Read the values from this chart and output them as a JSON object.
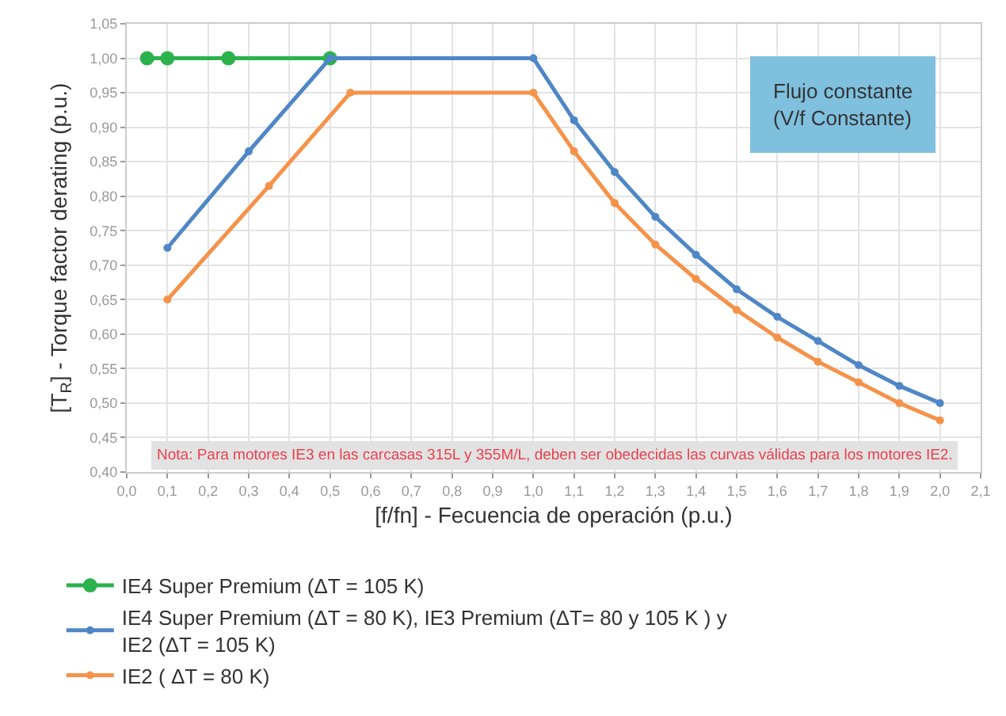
{
  "chart_data": {
    "type": "line",
    "xlabel": "[f/fn] - Fecuencia de operación (p.u.)",
    "ylabel": "[T$_{R}$] - Torque factor derating (p.u.)",
    "xlim": [
      0,
      2.1
    ],
    "xticks": [
      {
        "value": 0,
        "label": "0,0"
      },
      {
        "value": 0.1,
        "label": "0,1"
      },
      {
        "value": 0.2,
        "label": "0,2"
      },
      {
        "value": 0.3,
        "label": "0,3"
      },
      {
        "value": 0.4,
        "label": "0,4"
      },
      {
        "value": 0.5,
        "label": "0,5"
      },
      {
        "value": 0.6,
        "label": "0,6"
      },
      {
        "value": 0.7,
        "label": "0,7"
      },
      {
        "value": 0.8,
        "label": "0,8"
      },
      {
        "value": 0.9,
        "label": "0,9"
      },
      {
        "value": 1.0,
        "label": "1,0"
      },
      {
        "value": 1.1,
        "label": "1,1"
      },
      {
        "value": 1.2,
        "label": "1,2"
      },
      {
        "value": 1.3,
        "label": "1,3"
      },
      {
        "value": 1.4,
        "label": "1,4"
      },
      {
        "value": 1.5,
        "label": "1,5"
      },
      {
        "value": 1.6,
        "label": "1,6"
      },
      {
        "value": 1.7,
        "label": "1,7"
      },
      {
        "value": 1.8,
        "label": "1,8"
      },
      {
        "value": 1.9,
        "label": "1,9"
      },
      {
        "value": 2.0,
        "label": "2,0"
      },
      {
        "value": 2.1,
        "label": "2,1"
      }
    ],
    "ylim": [
      0.4,
      1.05
    ],
    "yticks": [
      {
        "value": 0.4,
        "label": "0,40"
      },
      {
        "value": 0.45,
        "label": "0,45"
      },
      {
        "value": 0.5,
        "label": "0,50"
      },
      {
        "value": 0.55,
        "label": "0,55"
      },
      {
        "value": 0.6,
        "label": "0,60"
      },
      {
        "value": 0.65,
        "label": "0,65"
      },
      {
        "value": 0.7,
        "label": "0,70"
      },
      {
        "value": 0.75,
        "label": "0,75"
      },
      {
        "value": 0.8,
        "label": "0,80"
      },
      {
        "value": 0.85,
        "label": "0,85"
      },
      {
        "value": 0.9,
        "label": "0,90"
      },
      {
        "value": 0.95,
        "label": "0,95"
      },
      {
        "value": 1.0,
        "label": "1,00"
      },
      {
        "value": 1.05,
        "label": "1,05"
      }
    ],
    "grid": true,
    "legend": "bottom",
    "marker": "circle",
    "line_style": "solid",
    "series": [
      {
        "name": "IE4 Super Premium (ΔT = 105 K)",
        "color": "#2bb24c",
        "x": [
          0.05,
          0.1,
          0.25,
          0.5
        ],
        "values": [
          1.0,
          1.0,
          1.0,
          1.0
        ]
      },
      {
        "name": "IE4 Super Premium (ΔT = 80 K), IE3 Premium (ΔT= 80 y 105 K ) y\nIE2 (ΔT = 105 K)",
        "color": "#4f86c6",
        "x": [
          0.1,
          0.3,
          0.5,
          1.0,
          1.1,
          1.2,
          1.3,
          1.4,
          1.5,
          1.6,
          1.7,
          1.8,
          1.9,
          2.0
        ],
        "values": [
          0.725,
          0.865,
          1.0,
          1.0,
          0.91,
          0.835,
          0.77,
          0.715,
          0.665,
          0.625,
          0.59,
          0.555,
          0.525,
          0.5
        ]
      },
      {
        "name": "IE2 ( ΔT = 80 K)",
        "color": "#f5924a",
        "x": [
          0.1,
          0.35,
          0.55,
          1.0,
          1.1,
          1.2,
          1.3,
          1.4,
          1.5,
          1.6,
          1.7,
          1.8,
          1.9,
          2.0
        ],
        "values": [
          0.65,
          0.815,
          0.95,
          0.95,
          0.865,
          0.79,
          0.73,
          0.68,
          0.635,
          0.595,
          0.56,
          0.53,
          0.5,
          0.475
        ]
      }
    ],
    "annotations": [
      "Flujo constante\n(V/f Constante)",
      "Nota: Para motores IE3 en las carcasas 315L y 355M/L, deben ser obedecidas las curvas válidas para los motores IE2."
    ]
  }
}
